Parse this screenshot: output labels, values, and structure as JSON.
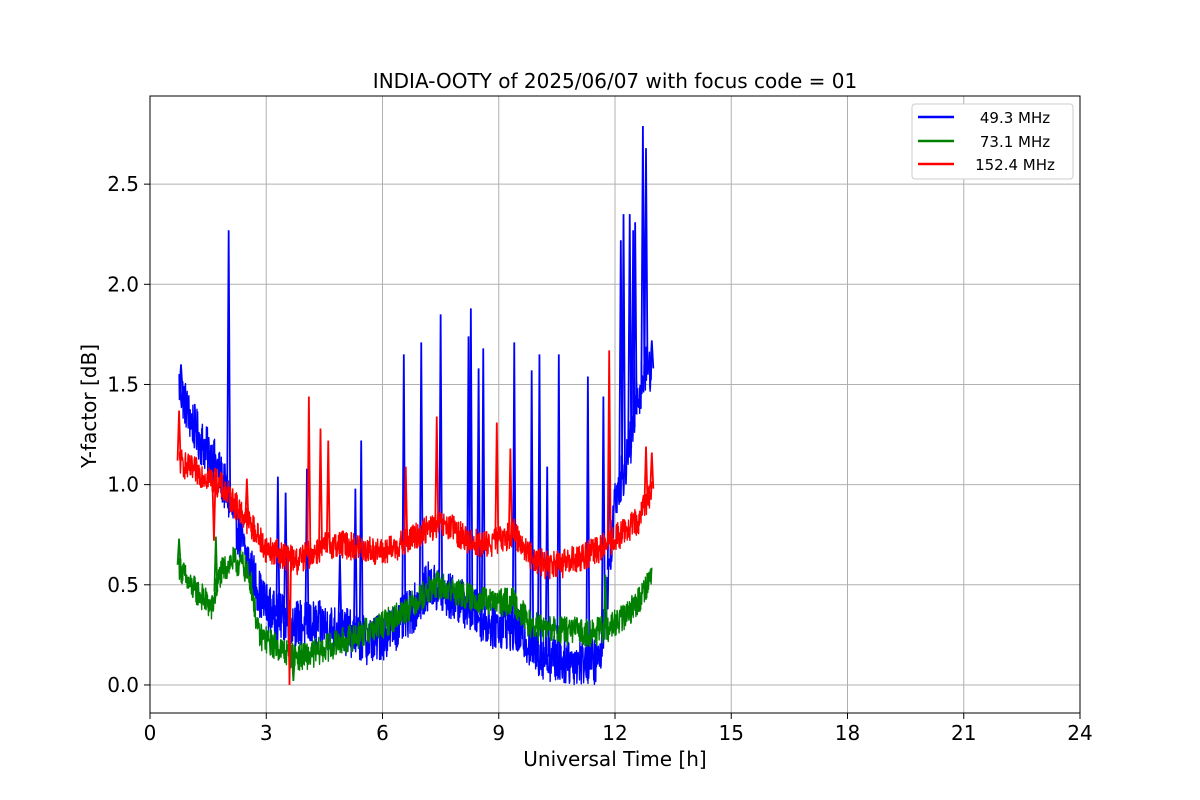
{
  "chart_data": {
    "type": "line",
    "title": "INDIA-OOTY of 2025/06/07 with focus code = 01",
    "xlabel": "Universal Time [h]",
    "ylabel": "Y-factor [dB]",
    "xlim": [
      0,
      24
    ],
    "ylim": [
      -0.14,
      2.94
    ],
    "xticks": [
      0,
      3,
      6,
      9,
      12,
      15,
      18,
      21,
      24
    ],
    "yticks": [
      0.0,
      0.5,
      1.0,
      1.5,
      2.0,
      2.5
    ],
    "xtick_labels": [
      "0",
      "3",
      "6",
      "9",
      "12",
      "15",
      "18",
      "21",
      "24"
    ],
    "ytick_labels": [
      "0.0",
      "0.5",
      "1.0",
      "1.5",
      "2.0",
      "2.5"
    ],
    "grid": true,
    "legend_position": "top-right",
    "series": [
      {
        "name": "49.3 MHz",
        "color": "#0000ff",
        "x": [
          0.75,
          1.0,
          1.3,
          1.7,
          2.0,
          2.3,
          2.6,
          2.9,
          3.2,
          3.6,
          4.0,
          4.4,
          5.0,
          5.6,
          6.0,
          6.4,
          6.8,
          7.2,
          7.6,
          8.0,
          8.4,
          8.8,
          9.2,
          9.6,
          10.0,
          10.4,
          10.8,
          11.2,
          11.6,
          11.8,
          12.0,
          12.2,
          12.4,
          12.6,
          12.8,
          12.95
        ],
        "y": [
          1.5,
          1.35,
          1.22,
          1.1,
          0.95,
          0.75,
          0.58,
          0.42,
          0.35,
          0.32,
          0.3,
          0.3,
          0.27,
          0.22,
          0.24,
          0.3,
          0.38,
          0.5,
          0.45,
          0.42,
          0.36,
          0.3,
          0.3,
          0.25,
          0.16,
          0.13,
          0.12,
          0.12,
          0.12,
          0.45,
          0.95,
          1.05,
          1.2,
          1.45,
          1.58,
          1.58
        ],
        "spikes": [
          {
            "x": 0.8,
            "y": 1.6
          },
          {
            "x": 2.03,
            "y": 2.27
          },
          {
            "x": 3.3,
            "y": 1.04
          },
          {
            "x": 3.5,
            "y": 0.96
          },
          {
            "x": 4.05,
            "y": 1.08
          },
          {
            "x": 4.9,
            "y": 0.65
          },
          {
            "x": 5.3,
            "y": 0.98
          },
          {
            "x": 5.45,
            "y": 1.22
          },
          {
            "x": 6.55,
            "y": 1.65
          },
          {
            "x": 7.0,
            "y": 1.71
          },
          {
            "x": 7.5,
            "y": 1.85
          },
          {
            "x": 8.22,
            "y": 1.74
          },
          {
            "x": 8.28,
            "y": 1.88
          },
          {
            "x": 8.48,
            "y": 1.58
          },
          {
            "x": 8.6,
            "y": 1.68
          },
          {
            "x": 9.4,
            "y": 1.71
          },
          {
            "x": 9.85,
            "y": 1.57
          },
          {
            "x": 10.05,
            "y": 1.65
          },
          {
            "x": 10.25,
            "y": 1.09
          },
          {
            "x": 10.55,
            "y": 1.65
          },
          {
            "x": 11.3,
            "y": 1.54
          },
          {
            "x": 11.7,
            "y": 1.44
          },
          {
            "x": 11.85,
            "y": 1.24
          },
          {
            "x": 12.15,
            "y": 2.22
          },
          {
            "x": 12.22,
            "y": 2.35
          },
          {
            "x": 12.38,
            "y": 2.35
          },
          {
            "x": 12.47,
            "y": 2.27
          },
          {
            "x": 12.52,
            "y": 2.31
          },
          {
            "x": 12.72,
            "y": 2.79
          },
          {
            "x": 12.8,
            "y": 2.68
          },
          {
            "x": 12.95,
            "y": 1.72
          }
        ]
      },
      {
        "name": "73.1 MHz",
        "color": "#008000",
        "x": [
          0.75,
          1.0,
          1.3,
          1.6,
          1.8,
          2.1,
          2.4,
          2.6,
          2.8,
          3.2,
          3.6,
          4.0,
          4.5,
          5.0,
          5.5,
          6.0,
          6.5,
          7.0,
          7.4,
          7.8,
          8.2,
          8.6,
          9.0,
          9.4,
          9.8,
          10.2,
          10.6,
          11.0,
          11.4,
          11.8,
          12.2,
          12.6,
          12.95
        ],
        "y": [
          0.6,
          0.5,
          0.45,
          0.38,
          0.55,
          0.62,
          0.6,
          0.52,
          0.25,
          0.2,
          0.15,
          0.14,
          0.18,
          0.22,
          0.26,
          0.3,
          0.36,
          0.44,
          0.5,
          0.47,
          0.44,
          0.42,
          0.41,
          0.42,
          0.3,
          0.28,
          0.27,
          0.27,
          0.26,
          0.28,
          0.33,
          0.42,
          0.55
        ],
        "spikes": [
          {
            "x": 0.75,
            "y": 0.73
          },
          {
            "x": 1.7,
            "y": 0.74
          },
          {
            "x": 3.7,
            "y": 0.02
          },
          {
            "x": 11.75,
            "y": 0.55
          }
        ]
      },
      {
        "name": "152.4 MHz",
        "color": "#ff0000",
        "x": [
          0.75,
          1.0,
          1.4,
          1.8,
          2.2,
          2.6,
          3.0,
          3.4,
          3.8,
          4.2,
          4.6,
          5.0,
          5.5,
          6.0,
          6.5,
          7.0,
          7.4,
          7.8,
          8.2,
          8.6,
          9.0,
          9.4,
          9.8,
          10.2,
          10.6,
          11.0,
          11.4,
          11.8,
          12.2,
          12.6,
          12.95
        ],
        "y": [
          1.12,
          1.08,
          1.05,
          1.0,
          0.9,
          0.8,
          0.68,
          0.65,
          0.62,
          0.66,
          0.7,
          0.7,
          0.68,
          0.66,
          0.7,
          0.76,
          0.8,
          0.78,
          0.72,
          0.7,
          0.72,
          0.76,
          0.65,
          0.6,
          0.6,
          0.63,
          0.66,
          0.7,
          0.76,
          0.82,
          0.98
        ],
        "spikes": [
          {
            "x": 0.75,
            "y": 1.37
          },
          {
            "x": 1.65,
            "y": 0.72
          },
          {
            "x": 2.5,
            "y": 1.03
          },
          {
            "x": 3.6,
            "y": 0.0
          },
          {
            "x": 4.1,
            "y": 1.44
          },
          {
            "x": 4.4,
            "y": 1.28
          },
          {
            "x": 4.6,
            "y": 1.22
          },
          {
            "x": 6.6,
            "y": 1.09
          },
          {
            "x": 7.4,
            "y": 1.34
          },
          {
            "x": 8.95,
            "y": 1.31
          },
          {
            "x": 9.3,
            "y": 1.18
          },
          {
            "x": 11.85,
            "y": 1.67
          },
          {
            "x": 12.8,
            "y": 1.19
          },
          {
            "x": 12.95,
            "y": 1.16
          }
        ]
      }
    ]
  }
}
